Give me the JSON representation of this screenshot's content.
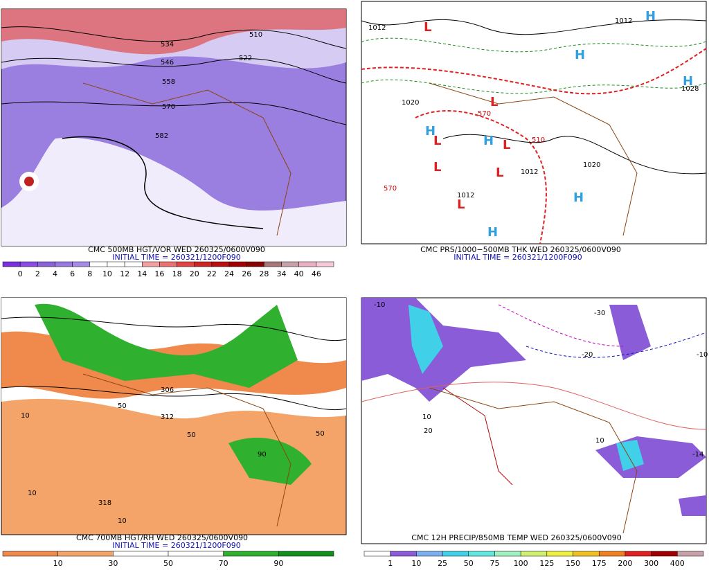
{
  "panels": [
    {
      "title": "CMC 500MB HGT/VOR WED 260325/0600V090",
      "initial_time": "INITIAL TIME = 260321/1200F090",
      "colorbar": {
        "labels": [
          0,
          2,
          4,
          6,
          8,
          10,
          12,
          14,
          16,
          18,
          20,
          22,
          24,
          26,
          28,
          34,
          40,
          46
        ],
        "colors": [
          "#7b2fe0",
          "#8c4ae6",
          "#8a62dc",
          "#9a78e2",
          "#a58ae8",
          "#ffffff",
          "#ffffff",
          "#ffffff",
          "#f4a0a0",
          "#ec7070",
          "#e04545",
          "#cc2525",
          "#b81010",
          "#a00000",
          "#8b0000",
          "#a87878",
          "#c8a0a8",
          "#e8b0c0",
          "#f8c8d8"
        ]
      },
      "contour_labels": [
        "510",
        "522",
        "534",
        "546",
        "558",
        "570",
        "582"
      ]
    },
    {
      "title": "CMC PRS/1000−500MB THK WED 260325/0600V090",
      "initial_time": "INITIAL TIME = 260321/1200F090",
      "contour_labels": [
        "1012",
        "1012",
        "570",
        "510",
        "1020",
        "1012",
        "1012",
        "1020",
        "570",
        "1028"
      ],
      "pressure_centers": [
        "L",
        "L",
        "L",
        "L",
        "L",
        "L",
        "L",
        "H",
        "H",
        "H",
        "H",
        "H",
        "H",
        "H"
      ]
    },
    {
      "title": "CMC 700MB HGT/RH WED 260325/0600V090",
      "initial_time": "INITIAL TIME = 260321/1200F090",
      "colorbar": {
        "labels": [
          10,
          30,
          50,
          70,
          90
        ],
        "colors": [
          "#f08a4c",
          "#f4a468",
          "#ffffff",
          "#ffffff",
          "#2fb02f",
          "#12901c"
        ]
      },
      "contour_labels": [
        "10",
        "50",
        "306",
        "312",
        "318",
        "50",
        "10",
        "10",
        "90",
        "50"
      ]
    },
    {
      "title": "CMC 12H PRECIP/850MB TEMP WED 260325/0600V090",
      "initial_time": null,
      "colorbar": {
        "labels": [
          1,
          10,
          25,
          50,
          75,
          100,
          125,
          150,
          175,
          200,
          300,
          400
        ],
        "colors": [
          "#ffffff",
          "#8a5cd8",
          "#7ab0f0",
          "#40d0e8",
          "#60e8e0",
          "#a0f0c0",
          "#d0f070",
          "#f0f040",
          "#f0c020",
          "#f08020",
          "#e02020",
          "#a00000",
          "#c8a0a8"
        ]
      },
      "contour_labels": [
        "-10",
        "-20",
        "-30",
        "10",
        "20",
        "-10",
        "-14",
        "10"
      ]
    }
  ]
}
